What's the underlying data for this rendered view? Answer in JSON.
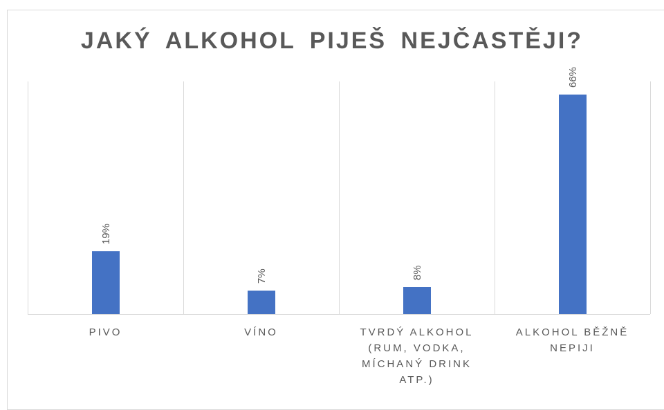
{
  "chart_data": {
    "type": "bar",
    "title": "JAKÝ ALKOHOL PIJEŠ NEJČASTĚJI?",
    "categories": [
      "PIVO",
      "VÍNO",
      "TVRDÝ ALKOHOL (RUM, VODKA, MÍCHANÝ DRINK ATP.)",
      "ALKOHOL BĚŽNĚ NEPIJI"
    ],
    "values": [
      19,
      7,
      8,
      66
    ],
    "value_labels": [
      "19%",
      "7%",
      "8%",
      "66%"
    ],
    "color": "#4472c4",
    "ylim": [
      0,
      70
    ]
  }
}
